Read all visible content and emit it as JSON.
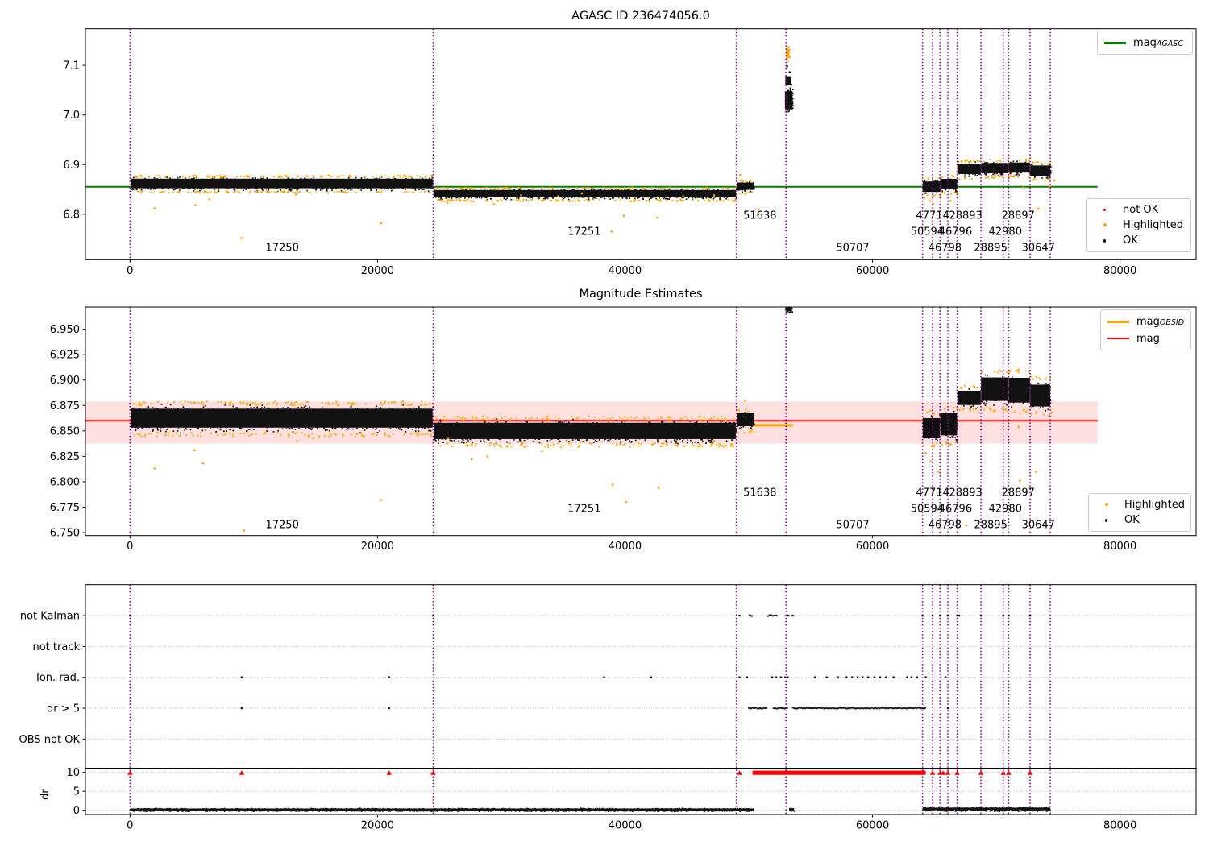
{
  "titles": {
    "plot1": "AGASC ID 236474056.0",
    "plot2": "Magnitude Estimates"
  },
  "colors": {
    "mag_agasc_line": "#008000",
    "mag_line": "#ff0000",
    "obsid_line": "#ffa500",
    "highlighted": "#ffa500",
    "ok": "#111111",
    "not_ok": "#ff0000",
    "vline": "#800080",
    "band": "rgba(255,0,0,0.12)",
    "grid": "#bbbbbb"
  },
  "legends": {
    "mag_agasc": {
      "main": "mag",
      "sub": "AGASC"
    },
    "mag_obsid": {
      "main": "mag",
      "sub": "OBSID"
    },
    "mag": "mag",
    "not_ok": "not OK",
    "highlighted": "Highlighted",
    "ok": "OK"
  },
  "chart_data": [
    {
      "type": "scatter",
      "title": "AGASC ID 236474056.0",
      "xlim": [
        -3603,
        86147
      ],
      "ylim": [
        6.7084,
        7.1737
      ],
      "xticks": [
        {
          "v": 0,
          "t": "0"
        },
        {
          "v": 20000,
          "t": "20000"
        },
        {
          "v": 40000,
          "t": "40000"
        },
        {
          "v": 60000,
          "t": "60000"
        },
        {
          "v": 80000,
          "t": "80000"
        }
      ],
      "yticks": [
        {
          "v": 7.1,
          "t": "7.1"
        },
        {
          "v": 7.0,
          "t": "7.0"
        },
        {
          "v": 6.9,
          "t": "6.9"
        },
        {
          "v": 6.8,
          "t": "6.8"
        }
      ],
      "vlines": [
        0,
        24500,
        49000,
        53010,
        64040,
        64850,
        65455,
        66090,
        66840,
        68760,
        70560,
        71000,
        72730,
        74360
      ],
      "hline": {
        "y": 6.8555,
        "x0": -3603,
        "x1": 78180,
        "color_key": "mag_agasc_line"
      },
      "segments": [
        {
          "x0": 100,
          "x1": 24450,
          "y0": 6.847,
          "y1": 6.877,
          "e": 1
        },
        {
          "x0": 24550,
          "x1": 48950,
          "y0": 6.83,
          "y1": 6.853,
          "e": 1
        },
        {
          "x0": 49060,
          "x1": 50400,
          "y0": 6.845,
          "y1": 6.868,
          "e": 1
        },
        {
          "x0": 52920,
          "x1": 53530,
          "y0": 7.002,
          "y1": 7.058,
          "d": 9
        },
        {
          "x0": 52950,
          "x1": 53450,
          "y0": 7.056,
          "y1": 7.083,
          "d": 1.2
        },
        {
          "x0": 53000,
          "x1": 53300,
          "y0": 7.108,
          "y1": 7.14,
          "d": 2.5,
          "c": "orange"
        },
        {
          "x0": 64050,
          "x1": 65440,
          "y0": 6.839,
          "y1": 6.872,
          "e": 1
        },
        {
          "x0": 65470,
          "x1": 66830,
          "y0": 6.845,
          "y1": 6.877,
          "e": 1
        },
        {
          "x0": 66850,
          "x1": 68750,
          "y0": 6.875,
          "y1": 6.908,
          "e": 1
        },
        {
          "x0": 68770,
          "x1": 70990,
          "y0": 6.877,
          "y1": 6.909,
          "e": 1
        },
        {
          "x0": 71010,
          "x1": 72720,
          "y0": 6.878,
          "y1": 6.91,
          "e": 1
        },
        {
          "x0": 72740,
          "x1": 74360,
          "y0": 6.872,
          "y1": 6.904,
          "e": 1
        }
      ],
      "black_singles": [
        [
          53100,
          7.098
        ],
        [
          53300,
          7.086
        ]
      ],
      "orange_singles": [
        [
          2000,
          6.812
        ],
        [
          5300,
          6.818
        ],
        [
          6400,
          6.83
        ],
        [
          9000,
          6.752
        ],
        [
          13400,
          6.84
        ],
        [
          16000,
          6.843
        ],
        [
          20300,
          6.782
        ],
        [
          25650,
          6.823
        ],
        [
          28800,
          6.827
        ],
        [
          29400,
          6.82
        ],
        [
          31600,
          6.838
        ],
        [
          34600,
          6.836
        ],
        [
          36500,
          6.842
        ],
        [
          38900,
          6.765
        ],
        [
          39900,
          6.797
        ],
        [
          42600,
          6.793
        ],
        [
          44700,
          6.836
        ],
        [
          47200,
          6.838
        ],
        [
          49300,
          6.879
        ],
        [
          50800,
          6.81
        ],
        [
          64200,
          6.833
        ],
        [
          64600,
          6.827
        ],
        [
          64900,
          6.821
        ],
        [
          66300,
          6.827
        ],
        [
          69900,
          6.879
        ],
        [
          72200,
          6.854
        ],
        [
          73400,
          6.811
        ],
        [
          74300,
          6.856
        ],
        [
          74700,
          6.868
        ]
      ],
      "annotations": [
        {
          "t": "51638",
          "x": 50900,
          "r": 0
        },
        {
          "t": "47714",
          "x": 64860,
          "r": 0
        },
        {
          "t": "28893",
          "x": 67530,
          "r": 0
        },
        {
          "t": "28897",
          "x": 71770,
          "r": 0
        },
        {
          "t": "17251",
          "x": 36700,
          "r": 1
        },
        {
          "t": "50594",
          "x": 64420,
          "r": 1
        },
        {
          "t": "46796",
          "x": 66700,
          "r": 1
        },
        {
          "t": "42980",
          "x": 70730,
          "r": 1
        },
        {
          "t": "17250",
          "x": 12300,
          "r": 2
        },
        {
          "t": "50707",
          "x": 58400,
          "r": 2
        },
        {
          "t": "46798",
          "x": 65850,
          "r": 2
        },
        {
          "t": "28895",
          "x": 69550,
          "r": 2
        },
        {
          "t": "30647",
          "x": 73400,
          "r": 2
        }
      ]
    },
    {
      "type": "scatter",
      "title": "Magnitude Estimates",
      "xlim": [
        -3603,
        86147
      ],
      "ylim": [
        6.7471,
        6.9719
      ],
      "xticks": [
        {
          "v": 0,
          "t": "0"
        },
        {
          "v": 20000,
          "t": "20000"
        },
        {
          "v": 40000,
          "t": "40000"
        },
        {
          "v": 60000,
          "t": "60000"
        },
        {
          "v": 80000,
          "t": "80000"
        }
      ],
      "yticks": [
        {
          "v": 6.95,
          "t": "6.950"
        },
        {
          "v": 6.925,
          "t": "6.925"
        },
        {
          "v": 6.9,
          "t": "6.900"
        },
        {
          "v": 6.875,
          "t": "6.875"
        },
        {
          "v": 6.85,
          "t": "6.850"
        },
        {
          "v": 6.825,
          "t": "6.825"
        },
        {
          "v": 6.8,
          "t": "6.800"
        },
        {
          "v": 6.775,
          "t": "6.775"
        },
        {
          "v": 6.75,
          "t": "6.750"
        }
      ],
      "vlines": [
        0,
        24500,
        49000,
        53010,
        64040,
        64850,
        65455,
        66090,
        66840,
        68760,
        70560,
        71000,
        72730,
        74360
      ],
      "hline": {
        "y": 6.86,
        "x0": -3603,
        "x1": 78180,
        "color_key": "mag_line"
      },
      "band": {
        "y0": 6.8375,
        "y1": 6.879,
        "x0": -3603,
        "x1": 78180
      },
      "obsid_lines": [
        {
          "x0": 100,
          "x1": 24450,
          "y": 6.8625
        },
        {
          "x0": 24550,
          "x1": 48950,
          "y": 6.849
        },
        {
          "x0": 49060,
          "x1": 50350,
          "y": 6.857
        },
        {
          "x0": 50350,
          "x1": 53550,
          "y": 6.8555
        },
        {
          "x0": 64050,
          "x1": 64600,
          "y": 6.8585
        },
        {
          "x0": 64450,
          "x1": 65440,
          "y": 6.851
        },
        {
          "x0": 65470,
          "x1": 66500,
          "y": 6.8555
        },
        {
          "x0": 66500,
          "x1": 66830,
          "y": 6.86
        },
        {
          "x0": 66850,
          "x1": 68750,
          "y": 6.8845
        },
        {
          "x0": 68770,
          "x1": 70990,
          "y": 6.892
        },
        {
          "x0": 71010,
          "x1": 72720,
          "y": 6.891
        },
        {
          "x0": 72740,
          "x1": 74360,
          "y": 6.884
        }
      ],
      "segments": [
        {
          "x0": 100,
          "x1": 24450,
          "y0": 6.848,
          "y1": 6.877,
          "e": 1
        },
        {
          "x0": 24550,
          "x1": 48950,
          "y0": 6.8375,
          "y1": 6.8625,
          "e": 1
        },
        {
          "x0": 49060,
          "x1": 50400,
          "y0": 6.851,
          "y1": 6.871,
          "e": 1
        },
        {
          "x0": 52950,
          "x1": 53500,
          "y0": 6.966,
          "y1": 6.978,
          "d": 10
        },
        {
          "x0": 64050,
          "x1": 65440,
          "y0": 6.838,
          "y1": 6.868,
          "e": 1
        },
        {
          "x0": 65470,
          "x1": 66830,
          "y0": 6.8395,
          "y1": 6.8735,
          "e": 1
        },
        {
          "x0": 66850,
          "x1": 68750,
          "y0": 6.8715,
          "y1": 6.8935,
          "e": 1
        },
        {
          "x0": 68770,
          "x1": 70990,
          "y0": 6.873,
          "y1": 6.909,
          "e": 1
        },
        {
          "x0": 71010,
          "x1": 72720,
          "y0": 6.871,
          "y1": 6.909,
          "e": 1
        },
        {
          "x0": 72740,
          "x1": 74360,
          "y0": 6.868,
          "y1": 6.9015,
          "e": 1
        }
      ],
      "black_singles": [],
      "orange_singles": [
        [
          2000,
          6.813
        ],
        [
          5200,
          6.831
        ],
        [
          5900,
          6.818
        ],
        [
          9200,
          6.752
        ],
        [
          13500,
          6.84
        ],
        [
          14800,
          6.843
        ],
        [
          20300,
          6.782
        ],
        [
          24300,
          6.845
        ],
        [
          25700,
          6.843
        ],
        [
          27600,
          6.822
        ],
        [
          28900,
          6.825
        ],
        [
          31700,
          6.838
        ],
        [
          33300,
          6.83
        ],
        [
          36400,
          6.839
        ],
        [
          39000,
          6.797
        ],
        [
          40100,
          6.78
        ],
        [
          42700,
          6.794
        ],
        [
          44800,
          6.835
        ],
        [
          47200,
          6.84
        ],
        [
          49700,
          6.88
        ],
        [
          64300,
          6.828
        ],
        [
          64700,
          6.82
        ],
        [
          65300,
          6.81
        ],
        [
          67600,
          6.757
        ],
        [
          69500,
          6.872
        ],
        [
          71800,
          6.854
        ],
        [
          71900,
          6.801
        ],
        [
          73200,
          6.81
        ],
        [
          74500,
          6.868
        ]
      ],
      "annotations": [
        {
          "t": "51638",
          "x": 50900,
          "r": 0
        },
        {
          "t": "47714",
          "x": 64860,
          "r": 0
        },
        {
          "t": "28893",
          "x": 67530,
          "r": 0
        },
        {
          "t": "28897",
          "x": 71770,
          "r": 0
        },
        {
          "t": "17251",
          "x": 36700,
          "r": 1
        },
        {
          "t": "50594",
          "x": 64420,
          "r": 1
        },
        {
          "t": "46796",
          "x": 66700,
          "r": 1
        },
        {
          "t": "42980",
          "x": 70730,
          "r": 1
        },
        {
          "t": "17250",
          "x": 12300,
          "r": 2
        },
        {
          "t": "50707",
          "x": 58400,
          "r": 2
        },
        {
          "t": "46798",
          "x": 65850,
          "r": 2
        },
        {
          "t": "28895",
          "x": 69550,
          "r": 2
        },
        {
          "t": "30647",
          "x": 73400,
          "r": 2
        }
      ]
    },
    {
      "type": "flags",
      "categories": [
        "not Kalman",
        "not track",
        "Ion. rad.",
        "dr > 5",
        "OBS not OK"
      ],
      "dr_ticks": [
        {
          "v": 10,
          "t": "10"
        },
        {
          "v": 5,
          "t": "5"
        },
        {
          "v": 0,
          "t": "0"
        }
      ],
      "ylabel": "dr",
      "xlim": [
        -3603,
        86147
      ],
      "xticks": [
        {
          "v": 0,
          "t": "0"
        },
        {
          "v": 20000,
          "t": "20000"
        },
        {
          "v": 40000,
          "t": "40000"
        },
        {
          "v": 60000,
          "t": "60000"
        },
        {
          "v": 80000,
          "t": "80000"
        }
      ],
      "vlines": [
        0,
        24500,
        49000,
        53010,
        64040,
        64850,
        65455,
        66090,
        66840,
        68760,
        70560,
        71000,
        72730,
        74360
      ],
      "separator_dr": 11.1,
      "cat_points": [
        {
          "cat": 0,
          "singles": [
            0,
            24500,
            49250,
            53200,
            53550,
            64040,
            64850,
            65455,
            66090,
            66840,
            67000,
            68760,
            70560,
            71000,
            72730
          ],
          "runs": [
            [
              50000,
              50200
            ],
            [
              51500,
              52250
            ]
          ]
        },
        {
          "cat": 2,
          "singles": [
            9030,
            20930,
            38300,
            42100,
            49250,
            49850,
            51900,
            52200,
            52600,
            52950,
            53150,
            55350,
            56300,
            57200,
            57900,
            58350,
            58800,
            59200,
            59650,
            60150,
            60600,
            61100,
            61700,
            62800,
            63150,
            63600,
            64300,
            65900
          ],
          "runs": []
        },
        {
          "cat": 3,
          "singles": [
            9030,
            20930,
            66100
          ],
          "runs": [
            [
              49950,
              51350
            ],
            [
              51950,
              53100
            ],
            [
              53500,
              64250
            ]
          ]
        }
      ],
      "dr_runs": [
        {
          "x0": 0,
          "x1": 50350,
          "lo": -0.2,
          "hi": 0.7
        },
        {
          "x0": 53250,
          "x1": 53650,
          "lo": -0.2,
          "hi": 0.8
        },
        {
          "x0": 64040,
          "x1": 74360,
          "lo": -0.2,
          "hi": 1.0
        }
      ],
      "red": {
        "dr": 9.9,
        "singles": [
          0,
          9030,
          20930,
          24500,
          49250,
          64850,
          65455,
          65700,
          66090,
          66840,
          68760,
          70560,
          71000,
          72730
        ],
        "run": [
          50300,
          64300
        ]
      }
    }
  ]
}
